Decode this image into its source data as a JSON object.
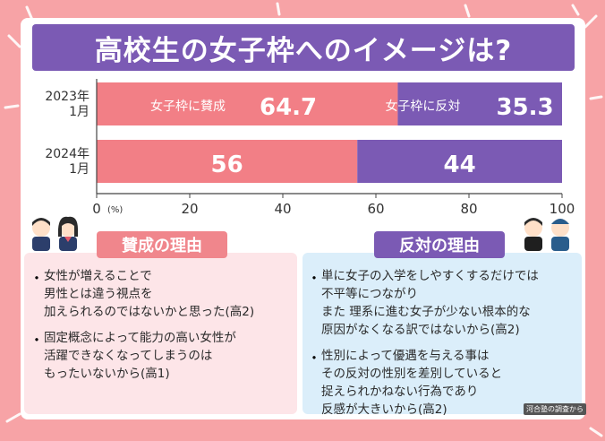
{
  "title": "高校生の女子枠へのイメージは?",
  "chart_data": {
    "type": "bar",
    "stacked": true,
    "orientation": "horizontal",
    "categories": [
      "2023年\n1月",
      "2024年\n1月"
    ],
    "series": [
      {
        "name": "女子枠に賛成",
        "values": [
          64.7,
          56
        ],
        "color": "#f27f86"
      },
      {
        "name": "女子枠に反対",
        "values": [
          35.3,
          44
        ],
        "color": "#7b5ab4"
      }
    ],
    "xlim": [
      0,
      100
    ],
    "x_ticks": [
      0,
      20,
      40,
      60,
      80,
      100
    ],
    "unit": "(%)",
    "grid": false
  },
  "sections": {
    "for": {
      "heading": "賛成の理由",
      "items": [
        "女性が増えることで\n男性とは違う視点を\n加えられるのではないかと思った(高2)",
        "固定概念によって能力の高い女性が\n活躍できなくなってしまうのは\nもったいないから(高1)"
      ]
    },
    "against": {
      "heading": "反対の理由",
      "items": [
        "単に女子の入学をしやすくするだけでは\n不平等につながり\nまた 理系に進む女子が少ない根本的な\n原因がなくなる訳ではないから(高2)",
        "性別によって優遇を与える事は\nその反対の性別を差別していると\n捉えられかねない行為であり\n反感が大きいから(高2)"
      ]
    }
  },
  "source": "河合塾の調査から"
}
